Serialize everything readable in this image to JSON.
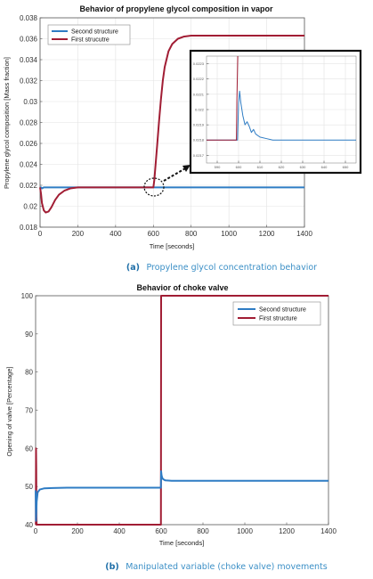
{
  "colors": {
    "second": "#2e7cc4",
    "first": "#a11d34",
    "caption": "#3b8fc6"
  },
  "chart_data": [
    {
      "type": "line",
      "title": "Behavior of propylene glycol composition in vapor",
      "xlabel": "Time [seconds]",
      "ylabel": "Propylene glycol composition [Mass fraction]",
      "xlim": [
        0,
        1400
      ],
      "ylim": [
        0.018,
        0.038
      ],
      "xticks": [
        "0",
        "200",
        "400",
        "600",
        "800",
        "1000",
        "1200",
        "1400"
      ],
      "yticks": [
        "0.018",
        "0.02",
        "0.022",
        "0.024",
        "0.026",
        "0.028",
        "0.03",
        "0.032",
        "0.034",
        "0.036",
        "0.038"
      ],
      "grid": true,
      "legend_position": "top-left",
      "series": [
        {
          "name": "Second structure",
          "x": [
            0,
            5,
            10,
            20,
            50,
            100,
            200,
            400,
            600,
            800,
            1000,
            1200,
            1400
          ],
          "y": [
            0.0218,
            0.0218,
            0.0217,
            0.0218,
            0.0218,
            0.0218,
            0.0218,
            0.0218,
            0.0218,
            0.0218,
            0.0218,
            0.0218,
            0.0218
          ]
        },
        {
          "name": "First strucutre",
          "x": [
            0,
            5,
            10,
            20,
            30,
            45,
            60,
            80,
            100,
            130,
            160,
            200,
            300,
            400,
            500,
            600,
            605,
            610,
            620,
            630,
            640,
            650,
            660,
            680,
            700,
            730,
            760,
            800,
            900,
            1000,
            1200,
            1400
          ],
          "y": [
            0.0218,
            0.0212,
            0.0203,
            0.0196,
            0.0194,
            0.0195,
            0.0199,
            0.0206,
            0.0211,
            0.0215,
            0.0217,
            0.0218,
            0.0218,
            0.0218,
            0.0218,
            0.0218,
            0.0225,
            0.0236,
            0.0258,
            0.0281,
            0.0302,
            0.032,
            0.0333,
            0.0348,
            0.0355,
            0.036,
            0.0362,
            0.0363,
            0.0363,
            0.0363,
            0.0363,
            0.0363
          ]
        }
      ],
      "inset": {
        "xlim": [
          585,
          655
        ],
        "ylim": [
          0.02165,
          0.02235
        ],
        "xticks": [
          "590",
          "600",
          "610",
          "620",
          "630",
          "640",
          "650"
        ],
        "yticks": [
          "0.0217",
          "0.0218",
          "0.0219",
          "0.022",
          "0.0221",
          "0.0222",
          "0.0223"
        ],
        "series": [
          {
            "name": "Second structure",
            "x": [
              585,
              599,
              599.5,
              600,
              600.5,
              601,
              602,
              603,
              604,
              605,
              606,
              607,
              608,
              610,
              613,
              616,
              620,
              625,
              630,
              640,
              655
            ],
            "y": [
              0.0218,
              0.0218,
              0.0218,
              0.02204,
              0.02212,
              0.02205,
              0.02196,
              0.0219,
              0.02192,
              0.02189,
              0.02185,
              0.02187,
              0.02184,
              0.02182,
              0.02181,
              0.0218,
              0.0218,
              0.0218,
              0.0218,
              0.0218,
              0.0218
            ]
          },
          {
            "name": "First strucutre",
            "x": [
              585,
              599,
              599.2,
              599.6
            ],
            "y": [
              0.0218,
              0.0218,
              0.02205,
              0.02235
            ]
          }
        ]
      },
      "caption_label": "(a)",
      "caption_text": "Propylene glycol concentration behavior"
    },
    {
      "type": "line",
      "title": "Behavior of choke valve",
      "xlabel": "Time [seconds]",
      "ylabel": "Opening of valve [Percentage]",
      "xlim": [
        0,
        1400
      ],
      "ylim": [
        40,
        100
      ],
      "xticks": [
        "0",
        "200",
        "400",
        "600",
        "800",
        "1000",
        "1200",
        "1400"
      ],
      "yticks": [
        "40",
        "50",
        "60",
        "70",
        "80",
        "90",
        "100"
      ],
      "grid": false,
      "legend_position": "top-right",
      "series": [
        {
          "name": "Second structure",
          "x": [
            0,
            2,
            5,
            10,
            20,
            40,
            80,
            150,
            300,
            599,
            600,
            602,
            605,
            610,
            620,
            650,
            700,
            800,
            1000,
            1400
          ],
          "y": [
            49,
            41,
            46,
            48.5,
            49.2,
            49.5,
            49.6,
            49.7,
            49.7,
            49.7,
            54,
            53,
            52.3,
            51.9,
            51.6,
            51.5,
            51.5,
            51.5,
            51.5,
            51.5
          ]
        },
        {
          "name": "First structure",
          "x": [
            0,
            1,
            2,
            3,
            4,
            5,
            599,
            600,
            601,
            1400
          ],
          "y": [
            40,
            40,
            60,
            55,
            42,
            40,
            40,
            100,
            100,
            100
          ]
        }
      ],
      "caption_label": "(b)",
      "caption_text": "Manipulated variable (choke valve) movements"
    }
  ]
}
